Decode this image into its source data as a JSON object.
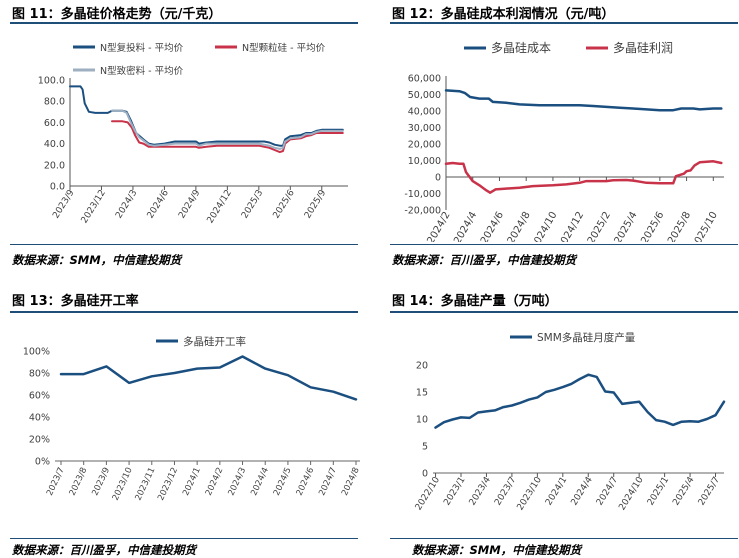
{
  "colors": {
    "navy": "#1f4e79",
    "blue": "#1b4f80",
    "red": "#c8334a",
    "gray": "#9dafc1",
    "axis": "#888888",
    "text": "#404040"
  },
  "panels": {
    "p11": {
      "title": "图 11：多晶硅价格走势（元/千克）",
      "source": "数据来源：SMM，中信建投期货"
    },
    "p12": {
      "title": "图 12：多晶硅成本利润情况（元/吨）",
      "source": "数据来源：百川盈孚，中信建投期货"
    },
    "p13": {
      "title": "图 13：多晶硅开工率",
      "source": "数据来源：百川盈孚，中信建投期货"
    },
    "p14": {
      "title": "图 14：多晶硅产量（万吨）",
      "source": "数据来源：SMM，中信建投期货"
    }
  },
  "chart_data": [
    {
      "id": "c11",
      "type": "line",
      "title": "多晶硅价格走势（元/千克）",
      "ylim": [
        0,
        100
      ],
      "yticks": [
        0,
        20,
        40,
        60,
        80,
        100
      ],
      "ytick_labels": [
        "0.0",
        "20.0",
        "40.0",
        "60.0",
        "80.0",
        "100.0"
      ],
      "xticks": [
        0,
        3,
        6,
        9,
        12,
        15,
        18,
        21,
        24
      ],
      "xtick_labels": [
        "2023/9",
        "2023/12",
        "2024/3",
        "2024/6",
        "2024/9",
        "2024/12",
        "2025/3",
        "2025/6",
        "2025/9"
      ],
      "xlim": [
        0,
        26.5
      ],
      "legend": "top-left",
      "series": [
        {
          "name": "N型复投料 - 平均价",
          "color": "#1b4f80",
          "width": 2,
          "points": [
            [
              0,
              94
            ],
            [
              1,
              94
            ],
            [
              1.2,
              91
            ],
            [
              1.4,
              78
            ],
            [
              1.8,
              70
            ],
            [
              2.4,
              69
            ],
            [
              3,
              69
            ],
            [
              3.6,
              69
            ],
            [
              4,
              71
            ],
            [
              5,
              71
            ],
            [
              5.4,
              70
            ],
            [
              5.8,
              62
            ],
            [
              6.3,
              50
            ],
            [
              7,
              44
            ],
            [
              7.5,
              40
            ],
            [
              8,
              39
            ],
            [
              9,
              40
            ],
            [
              10,
              42
            ],
            [
              12,
              42
            ],
            [
              12.3,
              40
            ],
            [
              13,
              41
            ],
            [
              14,
              42
            ],
            [
              16,
              42
            ],
            [
              17,
              42
            ],
            [
              18,
              42
            ],
            [
              18.5,
              42
            ],
            [
              19,
              41
            ],
            [
              19.5,
              39
            ],
            [
              20,
              38
            ],
            [
              20.3,
              38
            ],
            [
              20.5,
              44
            ],
            [
              21,
              47
            ],
            [
              22,
              48
            ],
            [
              22.5,
              50
            ],
            [
              23,
              50
            ],
            [
              23.5,
              52
            ],
            [
              24,
              53
            ],
            [
              25,
              53
            ],
            [
              26,
              53
            ]
          ]
        },
        {
          "name": "N型颗粒硅 - 平均价",
          "color": "#c8334a",
          "width": 2,
          "points": [
            [
              4,
              61
            ],
            [
              5,
              61
            ],
            [
              5.5,
              60
            ],
            [
              5.9,
              55
            ],
            [
              6.2,
              48
            ],
            [
              6.6,
              41
            ],
            [
              7,
              40
            ],
            [
              7.5,
              37
            ],
            [
              8,
              37
            ],
            [
              9,
              37
            ],
            [
              10,
              37
            ],
            [
              12,
              37
            ],
            [
              12.3,
              36
            ],
            [
              13,
              37
            ],
            [
              14,
              38
            ],
            [
              16,
              38
            ],
            [
              18,
              38
            ],
            [
              19,
              36
            ],
            [
              19.5,
              34
            ],
            [
              20,
              32
            ],
            [
              20.3,
              33
            ],
            [
              20.5,
              40
            ],
            [
              21,
              44
            ],
            [
              22,
              45
            ],
            [
              22.5,
              47
            ],
            [
              23,
              48
            ],
            [
              23.5,
              50
            ],
            [
              24,
              50
            ],
            [
              25,
              50
            ],
            [
              26,
              50
            ]
          ]
        },
        {
          "name": "N型致密料 - 平均价",
          "color": "#9dafc1",
          "width": 2,
          "points": [
            [
              4,
              71
            ],
            [
              5,
              71
            ],
            [
              5.4,
              69
            ],
            [
              5.8,
              60
            ],
            [
              6.2,
              52
            ],
            [
              6.6,
              46
            ],
            [
              7,
              43
            ],
            [
              7.5,
              39
            ],
            [
              8,
              38
            ],
            [
              9,
              39
            ],
            [
              10,
              40
            ],
            [
              12,
              40
            ],
            [
              12.3,
              38
            ],
            [
              13,
              40
            ],
            [
              14,
              40
            ],
            [
              16,
              40
            ],
            [
              18,
              40
            ],
            [
              19,
              38
            ],
            [
              19.5,
              36
            ],
            [
              20,
              35
            ],
            [
              20.3,
              36
            ],
            [
              20.5,
              42
            ],
            [
              21,
              45
            ],
            [
              22,
              46
            ],
            [
              22.5,
              49
            ],
            [
              23,
              49
            ],
            [
              23.5,
              51
            ],
            [
              24,
              52
            ],
            [
              25,
              52
            ],
            [
              26,
              52
            ]
          ]
        }
      ]
    },
    {
      "id": "c12",
      "type": "line",
      "title": "多晶硅成本利润情况（元/吨）",
      "ylim": [
        -20000,
        60000
      ],
      "yticks": [
        -20000,
        -10000,
        0,
        10000,
        20000,
        30000,
        40000,
        50000,
        60000
      ],
      "ytick_labels": [
        "-20,000",
        "-10,000",
        "0",
        "10,000",
        "20,000",
        "30,000",
        "40,000",
        "50,000",
        "60,000"
      ],
      "xticks": [
        0,
        2,
        4,
        6,
        8,
        10,
        12,
        14,
        16,
        18,
        20,
        22
      ],
      "xtick_labels": [
        "2024/2",
        "2024/4",
        "2024/6",
        "2024/8",
        "2024/10",
        "2024/12",
        "2025/2",
        "2025/4",
        "2025/6",
        "2025/8",
        "2025/10"
      ],
      "xtick_label_index": [
        0,
        2,
        4,
        6,
        8,
        10,
        12,
        14,
        16,
        18,
        20
      ],
      "xlim": [
        0,
        20.8
      ],
      "legend": "top",
      "series": [
        {
          "name": "多晶硅成本",
          "color": "#1b4f80",
          "width": 2.5,
          "points": [
            [
              0,
              52500
            ],
            [
              1,
              52000
            ],
            [
              1.4,
              51000
            ],
            [
              1.8,
              48500
            ],
            [
              2.5,
              47500
            ],
            [
              3.2,
              47500
            ],
            [
              3.5,
              45500
            ],
            [
              4.5,
              45000
            ],
            [
              5.5,
              44000
            ],
            [
              7,
              43500
            ],
            [
              10,
              43500
            ],
            [
              11,
              43000
            ],
            [
              12,
              42500
            ],
            [
              13,
              42000
            ],
            [
              14,
              41500
            ],
            [
              15,
              41000
            ],
            [
              16,
              40500
            ],
            [
              17,
              40500
            ],
            [
              17.6,
              41500
            ],
            [
              18.5,
              41500
            ],
            [
              19,
              41000
            ],
            [
              20,
              41500
            ],
            [
              20.6,
              41500
            ]
          ]
        },
        {
          "name": "多晶硅利润",
          "color": "#c8334a",
          "width": 2.5,
          "points": [
            [
              0,
              8000
            ],
            [
              0.5,
              8500
            ],
            [
              1,
              8000
            ],
            [
              1.3,
              8000
            ],
            [
              1.5,
              3000
            ],
            [
              2,
              -2500
            ],
            [
              2.5,
              -5000
            ],
            [
              3,
              -8000
            ],
            [
              3.3,
              -9500
            ],
            [
              3.7,
              -7500
            ],
            [
              4.5,
              -7000
            ],
            [
              5.5,
              -6500
            ],
            [
              6.5,
              -5500
            ],
            [
              8,
              -5000
            ],
            [
              9,
              -4500
            ],
            [
              10,
              -3500
            ],
            [
              10.5,
              -2500
            ],
            [
              12,
              -2500
            ],
            [
              12.5,
              -2000
            ],
            [
              13.5,
              -1800
            ],
            [
              14,
              -2200
            ],
            [
              15,
              -3500
            ],
            [
              16,
              -3800
            ],
            [
              17,
              -3800
            ],
            [
              17.2,
              500
            ],
            [
              17.8,
              2000
            ],
            [
              18,
              3500
            ],
            [
              18.3,
              4000
            ],
            [
              18.6,
              7000
            ],
            [
              19,
              9000
            ],
            [
              20,
              9500
            ],
            [
              20.6,
              8500
            ]
          ]
        }
      ]
    },
    {
      "id": "c13",
      "type": "line",
      "title": "多晶硅开工率",
      "ylim": [
        0,
        100
      ],
      "yticks": [
        0,
        20,
        40,
        60,
        80,
        100
      ],
      "ytick_labels": [
        "0%",
        "20%",
        "40%",
        "60%",
        "80%",
        "100%"
      ],
      "categories": [
        "2023/7",
        "2023/8",
        "2023/9",
        "2023/10",
        "2023/11",
        "2023/12",
        "2024/1",
        "2024/2",
        "2024/3",
        "2024/4",
        "2024/5",
        "2024/6",
        "2024/7",
        "2024/8"
      ],
      "legend": "top",
      "series": [
        {
          "name": "多晶硅开工率",
          "color": "#1b4f80",
          "width": 2.5,
          "values": [
            79,
            79,
            86,
            71,
            77,
            80,
            84,
            85,
            95,
            84,
            78,
            67,
            63,
            56
          ]
        }
      ]
    },
    {
      "id": "c14",
      "type": "line",
      "title": "多晶硅产量（万吨）",
      "ylim": [
        0,
        20
      ],
      "yticks": [
        0,
        5,
        10,
        15,
        20
      ],
      "ytick_labels": [
        "0",
        "5",
        "10",
        "15",
        "20"
      ],
      "xticks": [
        0,
        3,
        6,
        9,
        12,
        15,
        18,
        21,
        24,
        27,
        30,
        33
      ],
      "xtick_labels": [
        "2022/10",
        "2023/1",
        "2023/4",
        "2023/7",
        "2023/10",
        "2024/1",
        "2024/4",
        "2024/7",
        "2024/10",
        "2025/1",
        "2025/4",
        "2025/7"
      ],
      "xlim": [
        -0.3,
        34
      ],
      "legend": "top",
      "series": [
        {
          "name": "SMM多晶硅月度产量",
          "color": "#1b4f80",
          "width": 2.5,
          "points": [
            [
              0,
              8.4
            ],
            [
              1,
              9.4
            ],
            [
              2,
              9.9
            ],
            [
              3,
              10.3
            ],
            [
              4,
              10.2
            ],
            [
              5,
              11.2
            ],
            [
              6,
              11.4
            ],
            [
              7,
              11.6
            ],
            [
              8,
              12.2
            ],
            [
              9,
              12.5
            ],
            [
              10,
              13.0
            ],
            [
              11,
              13.6
            ],
            [
              12,
              14.0
            ],
            [
              13,
              15.0
            ],
            [
              14,
              15.4
            ],
            [
              15,
              15.9
            ],
            [
              16,
              16.5
            ],
            [
              17,
              17.4
            ],
            [
              18,
              18.2
            ],
            [
              19,
              17.8
            ],
            [
              20,
              15.1
            ],
            [
              21,
              14.9
            ],
            [
              22,
              12.8
            ],
            [
              23,
              13.0
            ],
            [
              24,
              13.2
            ],
            [
              25,
              11.3
            ],
            [
              26,
              9.8
            ],
            [
              27,
              9.5
            ],
            [
              28,
              8.9
            ],
            [
              29,
              9.5
            ],
            [
              30,
              9.6
            ],
            [
              31,
              9.5
            ],
            [
              32,
              10.0
            ],
            [
              33,
              10.7
            ],
            [
              34,
              13.2
            ]
          ]
        }
      ]
    }
  ]
}
